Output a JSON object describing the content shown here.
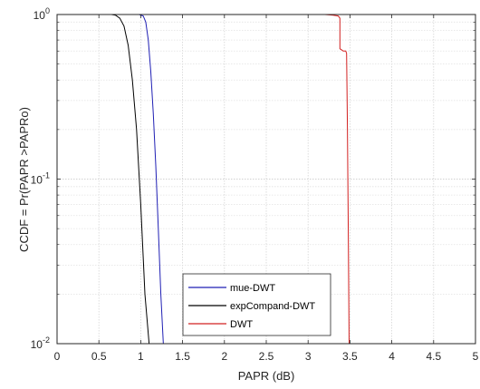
{
  "chart_data": {
    "type": "line",
    "xlabel": "PAPR (dB)",
    "ylabel": "CCDF = Pr(PAPR >PAPRo)",
    "xlim": [
      0,
      5
    ],
    "ylim": [
      0.01,
      1
    ],
    "yscale": "log",
    "grid": true,
    "minor_grid": true,
    "legend_position": "lower-center",
    "x_ticks": [
      "0",
      "0.5",
      "1",
      "1.5",
      "2",
      "2.5",
      "3",
      "3.5",
      "4",
      "4.5",
      "5"
    ],
    "y_ticks": [
      {
        "value": 1,
        "base": "10",
        "exp": "0"
      },
      {
        "value": 0.1,
        "base": "10",
        "exp": "-1"
      },
      {
        "value": 0.01,
        "base": "10",
        "exp": "-2"
      }
    ],
    "series": [
      {
        "name": "mue-DWT",
        "color": "#1f1fb4",
        "x": [
          0.98,
          1.03,
          1.06,
          1.09,
          1.12,
          1.15,
          1.18,
          1.21,
          1.24,
          1.27
        ],
        "y": [
          1.0,
          0.98,
          0.9,
          0.7,
          0.45,
          0.25,
          0.12,
          0.05,
          0.02,
          0.01
        ]
      },
      {
        "name": "expCompand-DWT",
        "color": "#000000",
        "x": [
          0.65,
          0.7,
          0.75,
          0.8,
          0.85,
          0.9,
          0.95,
          1.0,
          1.05,
          1.1
        ],
        "y": [
          1.0,
          0.99,
          0.95,
          0.85,
          0.65,
          0.4,
          0.2,
          0.07,
          0.02,
          0.01
        ]
      },
      {
        "name": "DWT",
        "color": "#d22020",
        "x": [
          3.0,
          3.2,
          3.3,
          3.36,
          3.38,
          3.38,
          3.42,
          3.45,
          3.46,
          3.47,
          3.48,
          3.49
        ],
        "y": [
          1.0,
          1.0,
          0.99,
          0.98,
          0.95,
          0.62,
          0.6,
          0.6,
          0.58,
          0.2,
          0.05,
          0.01
        ]
      }
    ]
  }
}
